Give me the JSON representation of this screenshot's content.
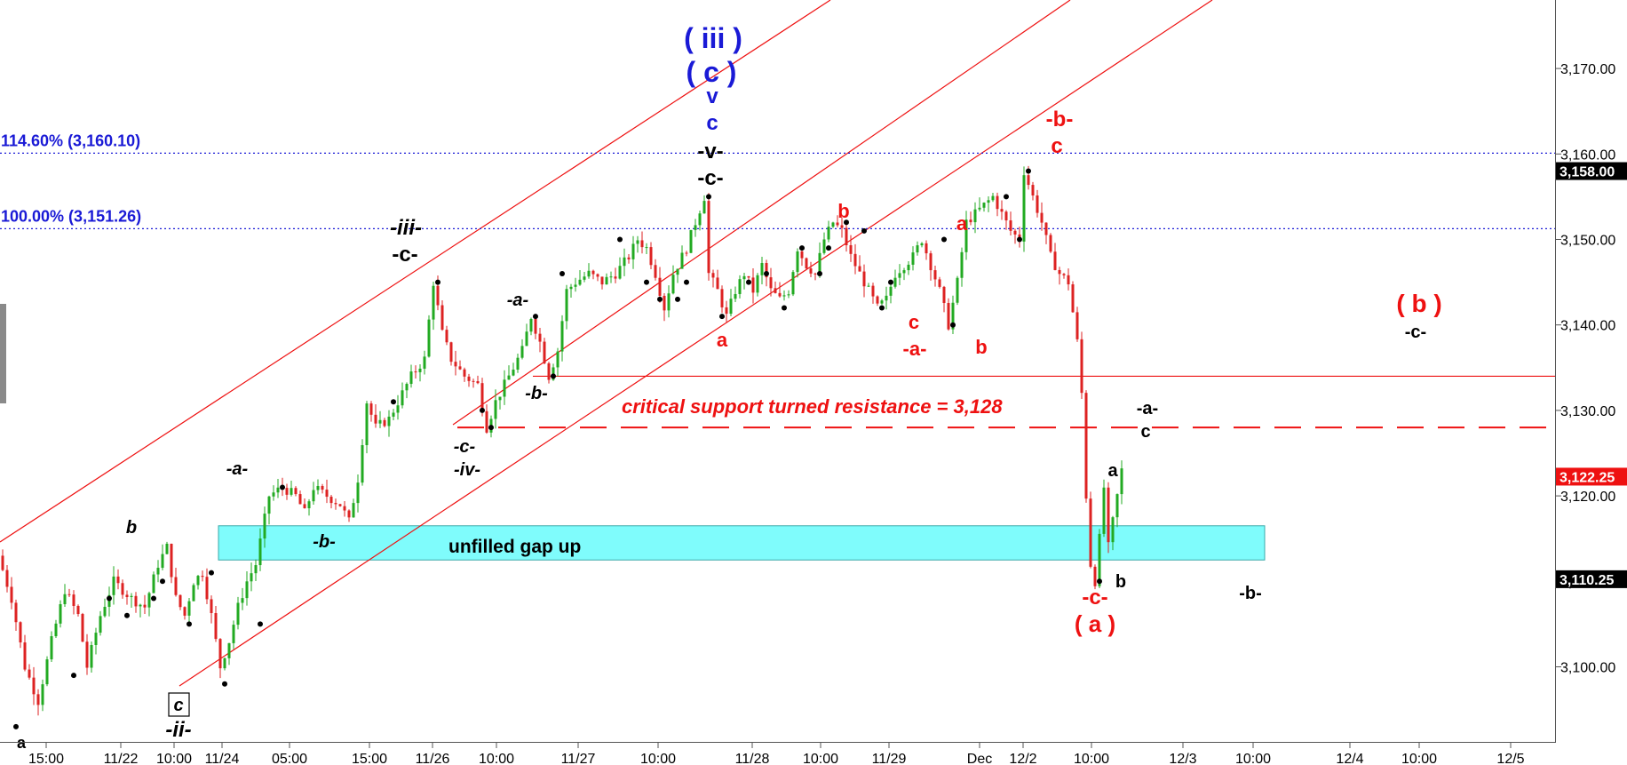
{
  "chart_data": {
    "type": "candlestick",
    "title": "",
    "xlabel": "",
    "ylabel": "",
    "ylim": [
      3088,
      3177
    ],
    "grid": false,
    "x_tick_labels": [
      "15:00",
      "11/22",
      "10:00",
      "11/24",
      "05:00",
      "15:00",
      "11/26",
      "10:00",
      "11/27",
      "10:00",
      "11/28",
      "10:00",
      "11/29",
      "Dec",
      "12/2",
      "10:00",
      "12/3",
      "10:00",
      "12/4",
      "10:00",
      "12/5"
    ],
    "y_ticks": [
      {
        "value": 3100,
        "label": "3,100.00"
      },
      {
        "value": 3110,
        "label": "3,110.00"
      },
      {
        "value": 3120,
        "label": "3,120.00"
      },
      {
        "value": 3130,
        "label": "3,130.00"
      },
      {
        "value": 3140,
        "label": "3,140.00"
      },
      {
        "value": 3150,
        "label": "3,150.00"
      },
      {
        "value": 3160,
        "label": "3,160.00"
      },
      {
        "value": 3170,
        "label": "3,170.00"
      }
    ],
    "price_markers": [
      {
        "value": 3158.0,
        "label": "3,158.00",
        "color": "#000000"
      },
      {
        "value": 3122.25,
        "label": "3,122.25",
        "color": "#ee1111"
      },
      {
        "value": 3110.25,
        "label": "3,110.25",
        "color": "#000000"
      }
    ],
    "fib_levels": [
      {
        "value": 3160.1,
        "label": "114.60% (3,160.10)"
      },
      {
        "value": 3151.26,
        "label": "100.00% (3,151.26)"
      }
    ],
    "support_line": {
      "value": 3128,
      "label": "critical support  turned resistance = 3,128"
    },
    "resistance_line": {
      "value": 3134.0
    },
    "gap_zone": {
      "low": 3112.5,
      "high": 3116.5,
      "label": "unfilled gap up"
    },
    "price_path": [
      [
        0,
        3113
      ],
      [
        3,
        3108
      ],
      [
        6,
        3100
      ],
      [
        9,
        3096
      ],
      [
        12,
        3103
      ],
      [
        15,
        3109
      ],
      [
        18,
        3106
      ],
      [
        20,
        3100
      ],
      [
        23,
        3106
      ],
      [
        26,
        3110
      ],
      [
        30,
        3108
      ],
      [
        33,
        3107
      ],
      [
        36,
        3112
      ],
      [
        38,
        3114
      ],
      [
        40,
        3108
      ],
      [
        42,
        3106
      ],
      [
        44,
        3110
      ],
      [
        46,
        3111
      ],
      [
        48,
        3106
      ],
      [
        50,
        3100
      ],
      [
        52,
        3103
      ],
      [
        54,
        3107
      ],
      [
        56,
        3110
      ],
      [
        58,
        3112
      ],
      [
        61,
        3120
      ],
      [
        64,
        3121
      ],
      [
        67,
        3120
      ],
      [
        69,
        3118
      ],
      [
        71,
        3121
      ],
      [
        74,
        3120
      ],
      [
        77,
        3119
      ],
      [
        79,
        3117
      ],
      [
        81,
        3122
      ],
      [
        83,
        3131
      ],
      [
        85,
        3128
      ],
      [
        88,
        3129
      ],
      [
        90,
        3131
      ],
      [
        93,
        3134
      ],
      [
        96,
        3136
      ],
      [
        98,
        3145
      ],
      [
        100,
        3139
      ],
      [
        102,
        3136
      ],
      [
        105,
        3134
      ],
      [
        108,
        3133
      ],
      [
        110,
        3128
      ],
      [
        112,
        3131
      ],
      [
        114,
        3133
      ],
      [
        116,
        3135
      ],
      [
        118,
        3137
      ],
      [
        120,
        3141
      ],
      [
        122,
        3138
      ],
      [
        124,
        3134
      ],
      [
        126,
        3137
      ],
      [
        128,
        3144
      ],
      [
        130,
        3145
      ],
      [
        133,
        3146
      ],
      [
        136,
        3145
      ],
      [
        139,
        3146
      ],
      [
        142,
        3148
      ],
      [
        144,
        3150
      ],
      [
        146,
        3149
      ],
      [
        148,
        3146
      ],
      [
        150,
        3142
      ],
      [
        152,
        3146
      ],
      [
        155,
        3149
      ],
      [
        157,
        3152
      ],
      [
        159,
        3155
      ],
      [
        160,
        3146
      ],
      [
        162,
        3144
      ],
      [
        164,
        3141
      ],
      [
        166,
        3144
      ],
      [
        168,
        3146
      ],
      [
        170,
        3144
      ],
      [
        172,
        3147
      ],
      [
        174,
        3144
      ],
      [
        176,
        3143
      ],
      [
        178,
        3144
      ],
      [
        180,
        3149
      ],
      [
        182,
        3147
      ],
      [
        184,
        3146
      ],
      [
        186,
        3150
      ],
      [
        188,
        3152
      ],
      [
        190,
        3151
      ],
      [
        192,
        3148
      ],
      [
        194,
        3146
      ],
      [
        196,
        3144
      ],
      [
        198,
        3142
      ],
      [
        200,
        3143
      ],
      [
        202,
        3146
      ],
      [
        204,
        3147
      ],
      [
        206,
        3148
      ],
      [
        208,
        3150
      ],
      [
        210,
        3147
      ],
      [
        212,
        3144
      ],
      [
        214,
        3140
      ],
      [
        216,
        3145
      ],
      [
        218,
        3152
      ],
      [
        220,
        3153
      ],
      [
        222,
        3154
      ],
      [
        224,
        3155
      ],
      [
        226,
        3153
      ],
      [
        228,
        3151
      ],
      [
        230,
        3150
      ],
      [
        231,
        3158
      ],
      [
        233,
        3155
      ],
      [
        235,
        3152
      ],
      [
        237,
        3148
      ],
      [
        239,
        3146
      ],
      [
        241,
        3145
      ],
      [
        243,
        3138
      ],
      [
        244,
        3132
      ],
      [
        245,
        3120
      ],
      [
        246,
        3112
      ],
      [
        247,
        3110
      ],
      [
        248,
        3115
      ],
      [
        249,
        3121
      ],
      [
        250,
        3114
      ],
      [
        251,
        3117
      ],
      [
        252,
        3120
      ],
      [
        253,
        3123
      ]
    ]
  },
  "annotations": {
    "iii_paren": "( iii )",
    "c_paren": "( c )",
    "v_blue": "v",
    "c_blue": "c",
    "v_dash": "-v-",
    "c_dash_top": "-c-",
    "iii_dash": "-iii-",
    "c_dash_iii": "-c-",
    "a_dash_1": "-a-",
    "b_dash_1": "-b-",
    "a_dash_2": "-a-",
    "b_dash_2": "-b-",
    "c_dash_iv": "-c-",
    "iv_dash": "-iv-",
    "b_small": "b",
    "c_boxed": "c",
    "ii_dash": "-ii-",
    "a_bottom": "a",
    "a_red_1": "a",
    "b_red_1": "b",
    "c_red_1": "c",
    "a_dash_red": "-a-",
    "a_red_2": "a",
    "b_red_2": "b",
    "b_dash_red": "-b-",
    "c_red_2": "c",
    "c_dash_red": "-c-",
    "a_paren_red": "( a )",
    "b_paren_red": "( b )",
    "c_dash_right": "-c-",
    "a_dash_right": "-a-",
    "c_right": "c",
    "a_right": "a",
    "b_right": "b",
    "b_dash_right": "-b-"
  },
  "colors": {
    "red": "#ee1111",
    "blue": "#1a1ad6",
    "bull": "#22aa22",
    "bear": "#dd2222",
    "gap": "#7ffcfc",
    "black": "#000000"
  }
}
